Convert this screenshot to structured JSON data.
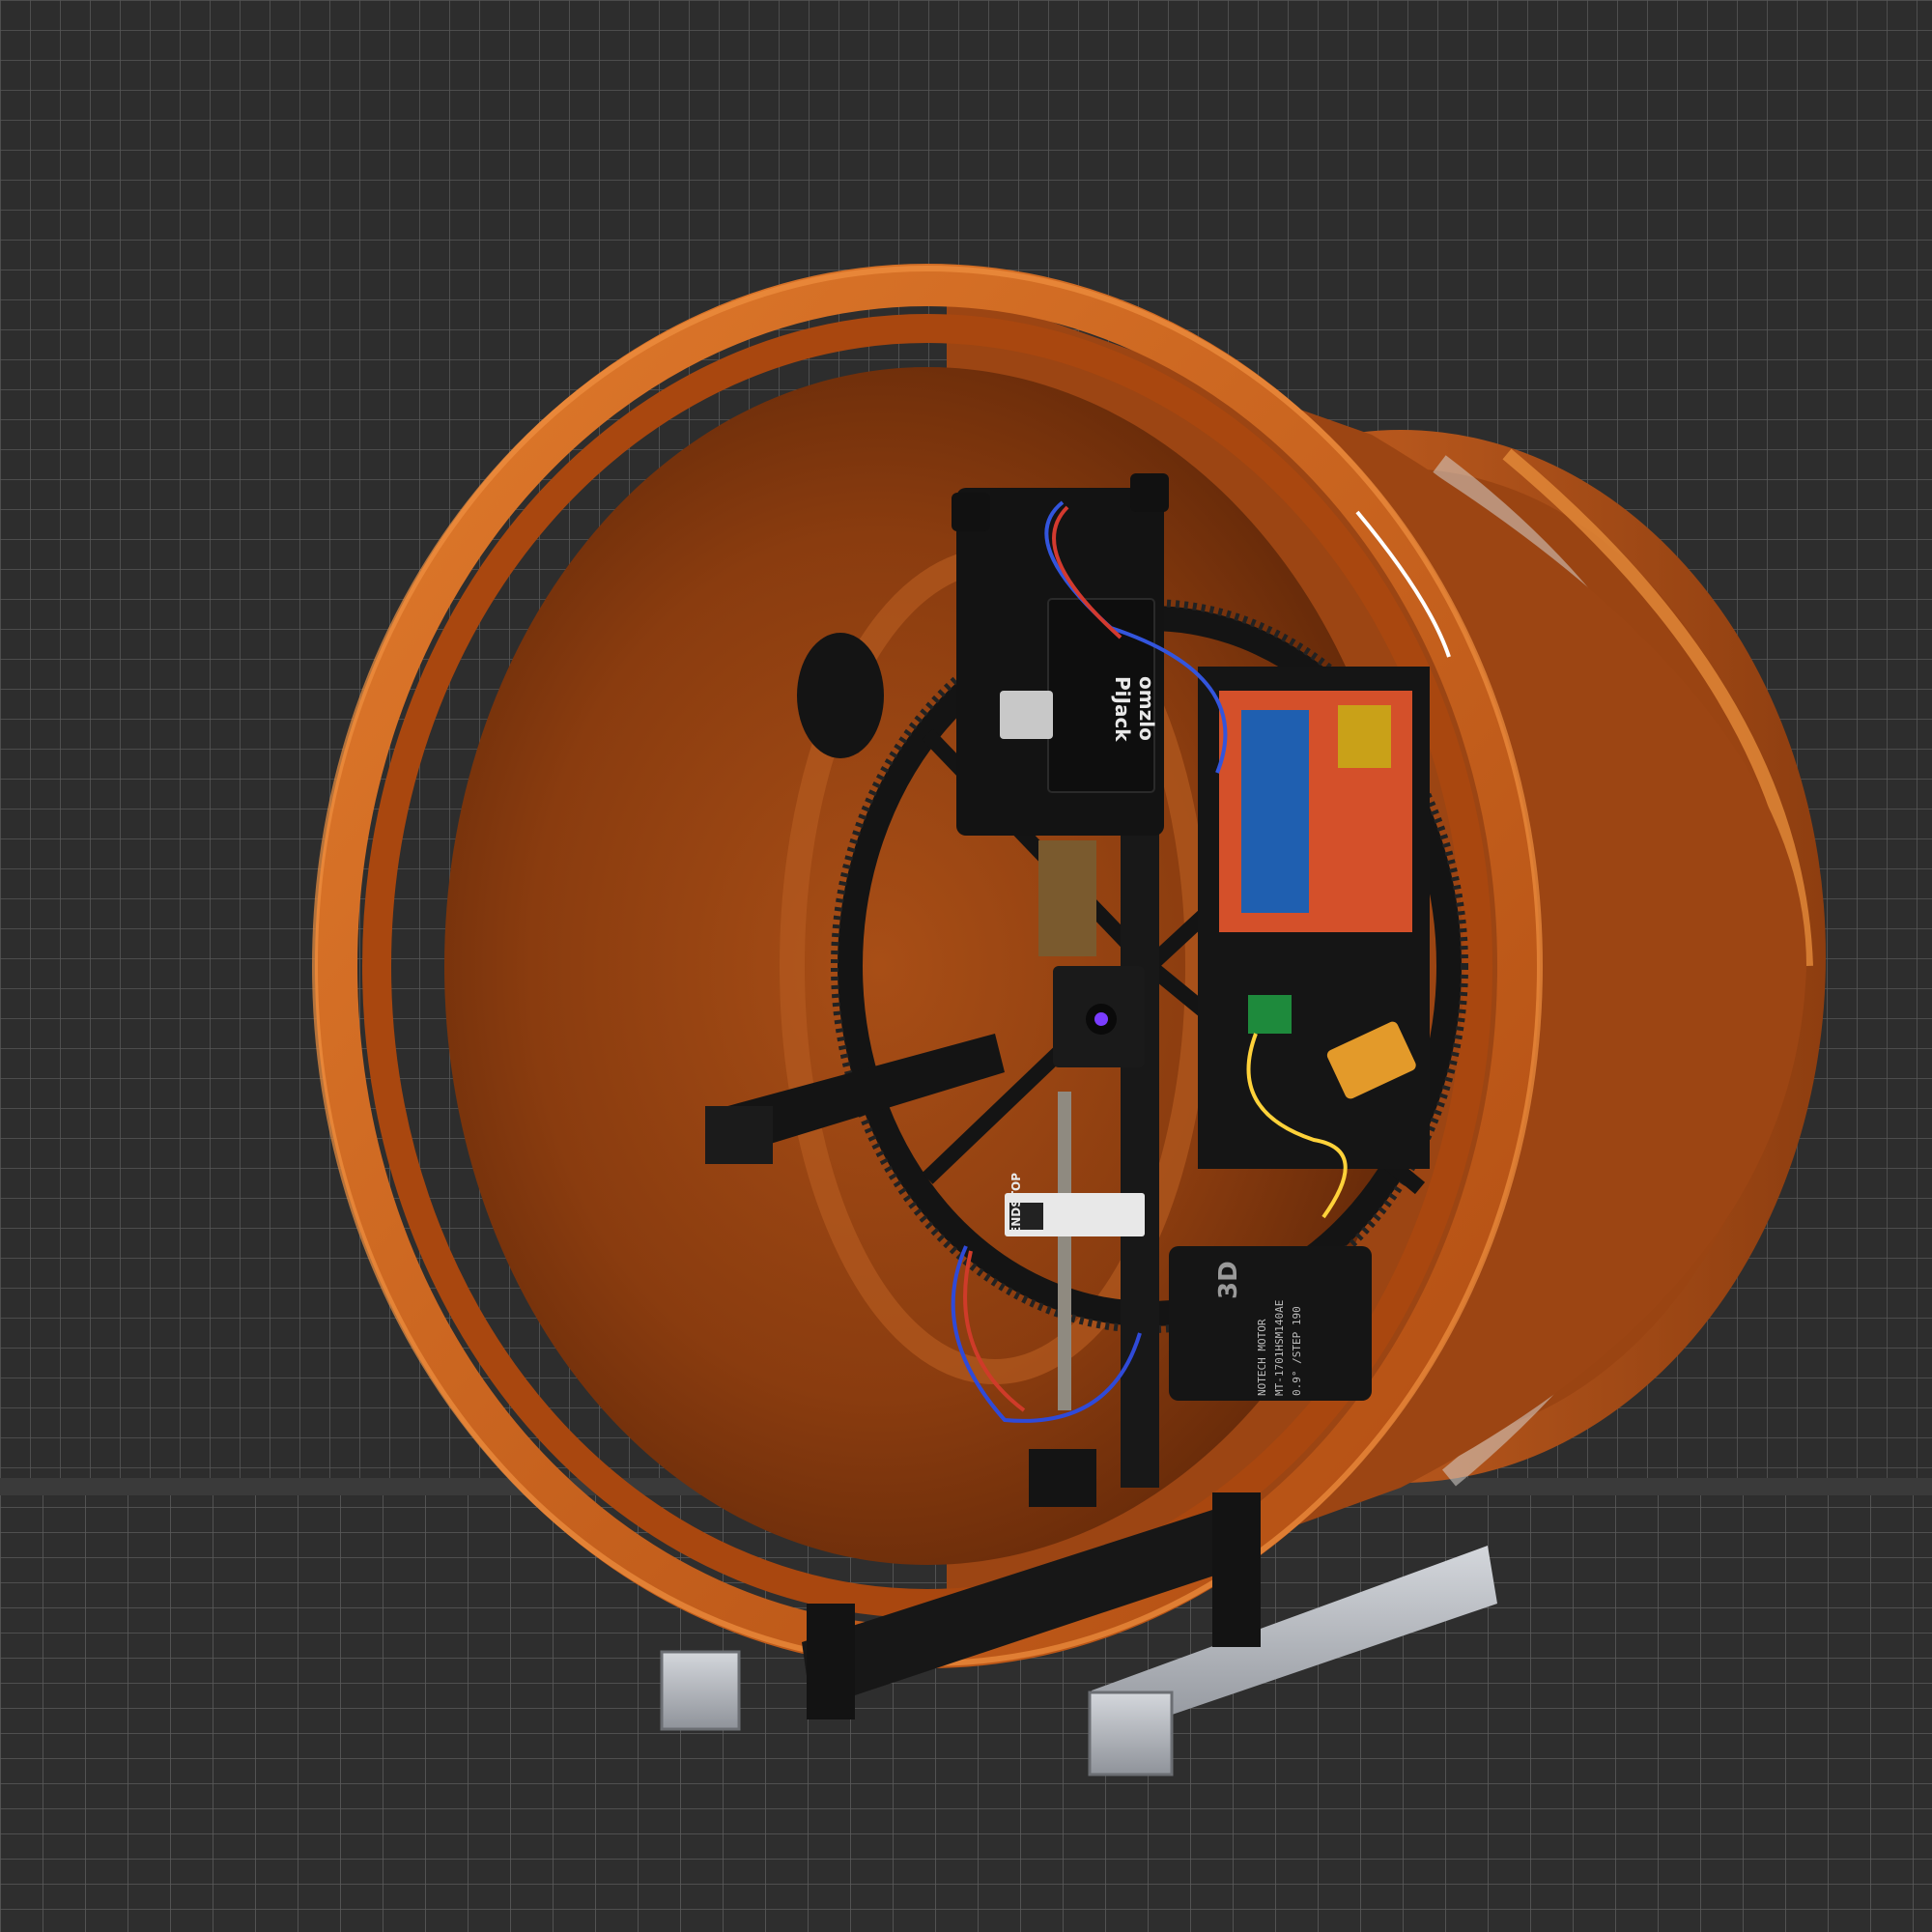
{
  "labels": {
    "hat_brand": "omzlo",
    "hat_model": "PiJack",
    "endstop": "ENDSTOP",
    "motor_logo": "3D",
    "motor_line1": "NOTECH MOTOR",
    "motor_line2": "MT-1701HSM140AE",
    "motor_line3": "0.9° /STEP 190"
  },
  "colors": {
    "background": "#2b2b2b",
    "grid_line": "#555555",
    "pipe_orange": "#c8621a",
    "pipe_interior": "#8a3d10",
    "electronics_black": "#151515",
    "pcb_red": "#d4502a",
    "arduino_blue": "#1f5fb0",
    "aluminum": "#b9bcc2"
  }
}
